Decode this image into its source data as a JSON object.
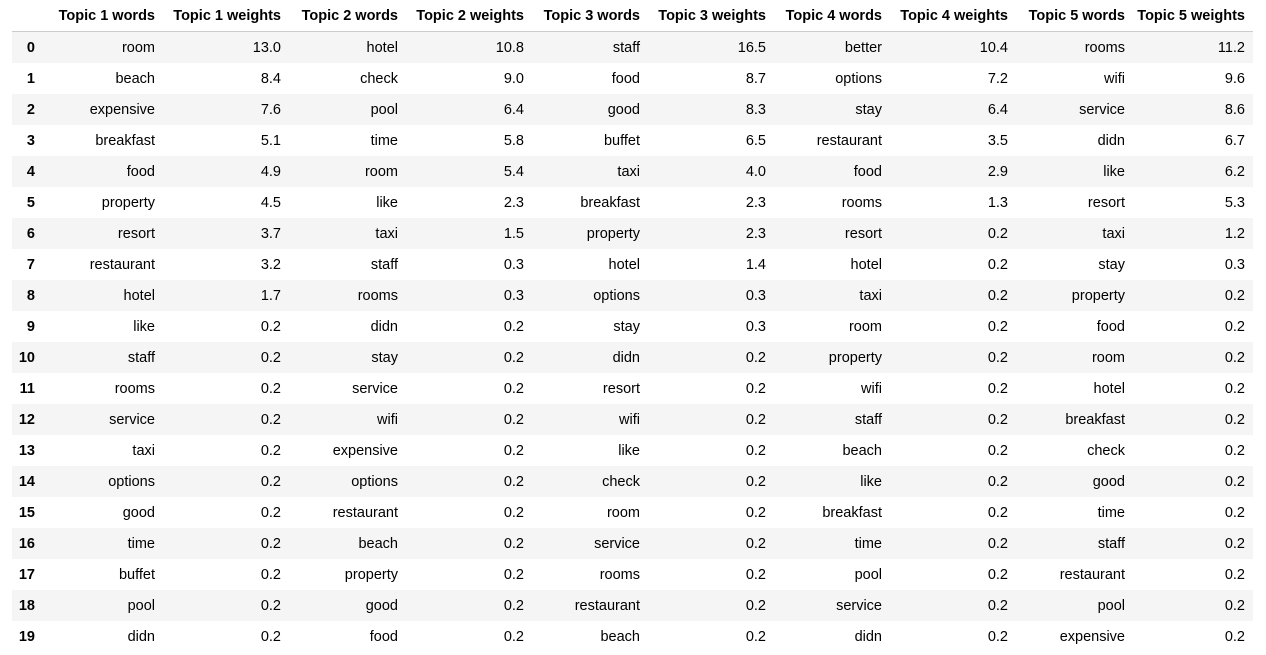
{
  "table": {
    "index_header": "",
    "headers": [
      "Topic 1 words",
      "Topic 1 weights",
      "Topic 2 words",
      "Topic 2 weights",
      "Topic 3 words",
      "Topic 3 weights",
      "Topic 4 words",
      "Topic 4 weights",
      "Topic 5 words",
      "Topic 5 weights"
    ],
    "rows": [
      {
        "index": "0",
        "cells": [
          "room",
          "13.0",
          "hotel",
          "10.8",
          "staff",
          "16.5",
          "better",
          "10.4",
          "rooms",
          "11.2"
        ]
      },
      {
        "index": "1",
        "cells": [
          "beach",
          "8.4",
          "check",
          "9.0",
          "food",
          "8.7",
          "options",
          "7.2",
          "wifi",
          "9.6"
        ]
      },
      {
        "index": "2",
        "cells": [
          "expensive",
          "7.6",
          "pool",
          "6.4",
          "good",
          "8.3",
          "stay",
          "6.4",
          "service",
          "8.6"
        ]
      },
      {
        "index": "3",
        "cells": [
          "breakfast",
          "5.1",
          "time",
          "5.8",
          "buffet",
          "6.5",
          "restaurant",
          "3.5",
          "didn",
          "6.7"
        ]
      },
      {
        "index": "4",
        "cells": [
          "food",
          "4.9",
          "room",
          "5.4",
          "taxi",
          "4.0",
          "food",
          "2.9",
          "like",
          "6.2"
        ]
      },
      {
        "index": "5",
        "cells": [
          "property",
          "4.5",
          "like",
          "2.3",
          "breakfast",
          "2.3",
          "rooms",
          "1.3",
          "resort",
          "5.3"
        ]
      },
      {
        "index": "6",
        "cells": [
          "resort",
          "3.7",
          "taxi",
          "1.5",
          "property",
          "2.3",
          "resort",
          "0.2",
          "taxi",
          "1.2"
        ]
      },
      {
        "index": "7",
        "cells": [
          "restaurant",
          "3.2",
          "staff",
          "0.3",
          "hotel",
          "1.4",
          "hotel",
          "0.2",
          "stay",
          "0.3"
        ]
      },
      {
        "index": "8",
        "cells": [
          "hotel",
          "1.7",
          "rooms",
          "0.3",
          "options",
          "0.3",
          "taxi",
          "0.2",
          "property",
          "0.2"
        ]
      },
      {
        "index": "9",
        "cells": [
          "like",
          "0.2",
          "didn",
          "0.2",
          "stay",
          "0.3",
          "room",
          "0.2",
          "food",
          "0.2"
        ]
      },
      {
        "index": "10",
        "cells": [
          "staff",
          "0.2",
          "stay",
          "0.2",
          "didn",
          "0.2",
          "property",
          "0.2",
          "room",
          "0.2"
        ]
      },
      {
        "index": "11",
        "cells": [
          "rooms",
          "0.2",
          "service",
          "0.2",
          "resort",
          "0.2",
          "wifi",
          "0.2",
          "hotel",
          "0.2"
        ]
      },
      {
        "index": "12",
        "cells": [
          "service",
          "0.2",
          "wifi",
          "0.2",
          "wifi",
          "0.2",
          "staff",
          "0.2",
          "breakfast",
          "0.2"
        ]
      },
      {
        "index": "13",
        "cells": [
          "taxi",
          "0.2",
          "expensive",
          "0.2",
          "like",
          "0.2",
          "beach",
          "0.2",
          "check",
          "0.2"
        ]
      },
      {
        "index": "14",
        "cells": [
          "options",
          "0.2",
          "options",
          "0.2",
          "check",
          "0.2",
          "like",
          "0.2",
          "good",
          "0.2"
        ]
      },
      {
        "index": "15",
        "cells": [
          "good",
          "0.2",
          "restaurant",
          "0.2",
          "room",
          "0.2",
          "breakfast",
          "0.2",
          "time",
          "0.2"
        ]
      },
      {
        "index": "16",
        "cells": [
          "time",
          "0.2",
          "beach",
          "0.2",
          "service",
          "0.2",
          "time",
          "0.2",
          "staff",
          "0.2"
        ]
      },
      {
        "index": "17",
        "cells": [
          "buffet",
          "0.2",
          "property",
          "0.2",
          "rooms",
          "0.2",
          "pool",
          "0.2",
          "restaurant",
          "0.2"
        ]
      },
      {
        "index": "18",
        "cells": [
          "pool",
          "0.2",
          "good",
          "0.2",
          "restaurant",
          "0.2",
          "service",
          "0.2",
          "pool",
          "0.2"
        ]
      },
      {
        "index": "19",
        "cells": [
          "didn",
          "0.2",
          "food",
          "0.2",
          "beach",
          "0.2",
          "didn",
          "0.2",
          "expensive",
          "0.2"
        ]
      }
    ]
  }
}
